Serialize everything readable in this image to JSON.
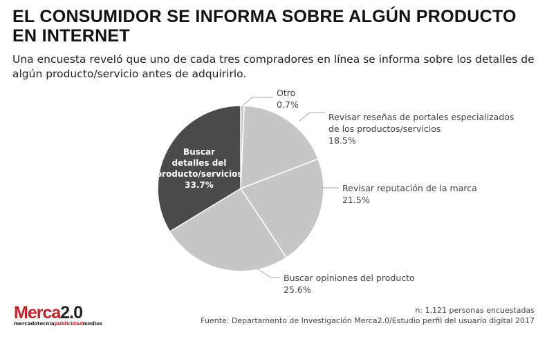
{
  "title_line1": "EL CONSUMIDOR SE INFORMA SOBRE ALGÚN PRODUCTO",
  "title_line2": "EN INTERNET",
  "subtitle": "Una encuesta reveló que uno de cada tres compradores en línea se informa sobre los detalles de algún producto/servicio antes de adquirirlo.",
  "chart_data": {
    "type": "pie",
    "title": "EL CONSUMIDOR SE INFORMA SOBRE ALGÚN PRODUCTO EN INTERNET",
    "categories": [
      "Otro",
      "Revisar reseñas de portales especializados de los productos/servicios",
      "Revisar reputación de la marca",
      "Buscar opiniones del producto",
      "Buscar detalles del producto/servicios"
    ],
    "values": [
      0.7,
      18.5,
      21.5,
      25.6,
      33.7
    ],
    "labels": [
      "0.7%",
      "18.5%",
      "21.5%",
      "25.6%",
      "33.7%"
    ],
    "label_lines": [
      [
        "Otro"
      ],
      [
        "Revisar reseñas de portales especializados",
        "de los productos/servicios"
      ],
      [
        "Revisar reputación de la marca"
      ],
      [
        "Buscar opiniones del producto"
      ],
      [
        "Buscar",
        "detalles del",
        "producto/servicios"
      ]
    ],
    "colors": [
      "#c6c6c6",
      "#c6c6c6",
      "#c6c6c6",
      "#c6c6c6",
      "#4a4a4a"
    ]
  },
  "footer": {
    "n": "n: 1,121 personas encuestadas",
    "source": "Fuente: Departamento de Investigación Merca2.0/Estudio perfil del usuario digital 2017"
  },
  "logo": {
    "brand": "Merca",
    "brand2": "2.0",
    "tag1": "mercadotecnia",
    "tag2": "publicidad",
    "tag3": "medios"
  }
}
